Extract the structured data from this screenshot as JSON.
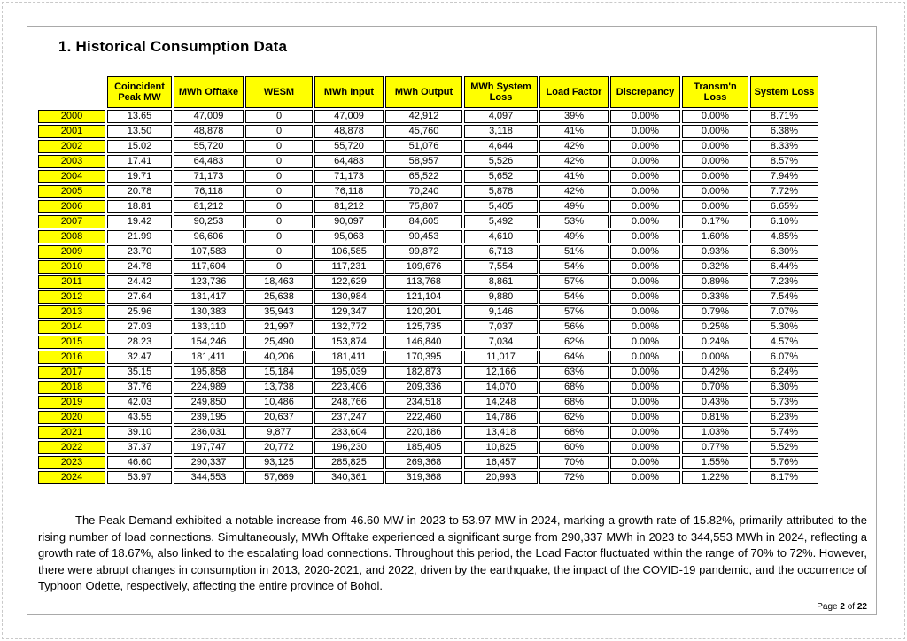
{
  "page": {
    "title": "1. Historical Consumption Data"
  },
  "colors": {
    "table_header_bg": "#FFFF00",
    "year_column_bg": "#FFFF00",
    "cell_border": "#000000"
  },
  "table": {
    "columns": [
      "Coincident Peak MW",
      "MWh Offtake",
      "WESM",
      "MWh Input",
      "MWh Output",
      "MWh System Loss",
      "Load Factor",
      "Discrepancy",
      "Transm'n Loss",
      "System Loss"
    ],
    "rows": [
      [
        "2000",
        "13.65",
        "47,009",
        "0",
        "47,009",
        "42,912",
        "4,097",
        "39%",
        "0.00%",
        "0.00%",
        "8.71%"
      ],
      [
        "2001",
        "13.50",
        "48,878",
        "0",
        "48,878",
        "45,760",
        "3,118",
        "41%",
        "0.00%",
        "0.00%",
        "6.38%"
      ],
      [
        "2002",
        "15.02",
        "55,720",
        "0",
        "55,720",
        "51,076",
        "4,644",
        "42%",
        "0.00%",
        "0.00%",
        "8.33%"
      ],
      [
        "2003",
        "17.41",
        "64,483",
        "0",
        "64,483",
        "58,957",
        "5,526",
        "42%",
        "0.00%",
        "0.00%",
        "8.57%"
      ],
      [
        "2004",
        "19.71",
        "71,173",
        "0",
        "71,173",
        "65,522",
        "5,652",
        "41%",
        "0.00%",
        "0.00%",
        "7.94%"
      ],
      [
        "2005",
        "20.78",
        "76,118",
        "0",
        "76,118",
        "70,240",
        "5,878",
        "42%",
        "0.00%",
        "0.00%",
        "7.72%"
      ],
      [
        "2006",
        "18.81",
        "81,212",
        "0",
        "81,212",
        "75,807",
        "5,405",
        "49%",
        "0.00%",
        "0.00%",
        "6.65%"
      ],
      [
        "2007",
        "19.42",
        "90,253",
        "0",
        "90,097",
        "84,605",
        "5,492",
        "53%",
        "0.00%",
        "0.17%",
        "6.10%"
      ],
      [
        "2008",
        "21.99",
        "96,606",
        "0",
        "95,063",
        "90,453",
        "4,610",
        "49%",
        "0.00%",
        "1.60%",
        "4.85%"
      ],
      [
        "2009",
        "23.70",
        "107,583",
        "0",
        "106,585",
        "99,872",
        "6,713",
        "51%",
        "0.00%",
        "0.93%",
        "6.30%"
      ],
      [
        "2010",
        "24.78",
        "117,604",
        "0",
        "117,231",
        "109,676",
        "7,554",
        "54%",
        "0.00%",
        "0.32%",
        "6.44%"
      ],
      [
        "2011",
        "24.42",
        "123,736",
        "18,463",
        "122,629",
        "113,768",
        "8,861",
        "57%",
        "0.00%",
        "0.89%",
        "7.23%"
      ],
      [
        "2012",
        "27.64",
        "131,417",
        "25,638",
        "130,984",
        "121,104",
        "9,880",
        "54%",
        "0.00%",
        "0.33%",
        "7.54%"
      ],
      [
        "2013",
        "25.96",
        "130,383",
        "35,943",
        "129,347",
        "120,201",
        "9,146",
        "57%",
        "0.00%",
        "0.79%",
        "7.07%"
      ],
      [
        "2014",
        "27.03",
        "133,110",
        "21,997",
        "132,772",
        "125,735",
        "7,037",
        "56%",
        "0.00%",
        "0.25%",
        "5.30%"
      ],
      [
        "2015",
        "28.23",
        "154,246",
        "25,490",
        "153,874",
        "146,840",
        "7,034",
        "62%",
        "0.00%",
        "0.24%",
        "4.57%"
      ],
      [
        "2016",
        "32.47",
        "181,411",
        "40,206",
        "181,411",
        "170,395",
        "11,017",
        "64%",
        "0.00%",
        "0.00%",
        "6.07%"
      ],
      [
        "2017",
        "35.15",
        "195,858",
        "15,184",
        "195,039",
        "182,873",
        "12,166",
        "63%",
        "0.00%",
        "0.42%",
        "6.24%"
      ],
      [
        "2018",
        "37.76",
        "224,989",
        "13,738",
        "223,406",
        "209,336",
        "14,070",
        "68%",
        "0.00%",
        "0.70%",
        "6.30%"
      ],
      [
        "2019",
        "42.03",
        "249,850",
        "10,486",
        "248,766",
        "234,518",
        "14,248",
        "68%",
        "0.00%",
        "0.43%",
        "5.73%"
      ],
      [
        "2020",
        "43.55",
        "239,195",
        "20,637",
        "237,247",
        "222,460",
        "14,786",
        "62%",
        "0.00%",
        "0.81%",
        "6.23%"
      ],
      [
        "2021",
        "39.10",
        "236,031",
        "9,877",
        "233,604",
        "220,186",
        "13,418",
        "68%",
        "0.00%",
        "1.03%",
        "5.74%"
      ],
      [
        "2022",
        "37.37",
        "197,747",
        "20,772",
        "196,230",
        "185,405",
        "10,825",
        "60%",
        "0.00%",
        "0.77%",
        "5.52%"
      ],
      [
        "2023",
        "46.60",
        "290,337",
        "93,125",
        "285,825",
        "269,368",
        "16,457",
        "70%",
        "0.00%",
        "1.55%",
        "5.76%"
      ],
      [
        "2024",
        "53.97",
        "344,553",
        "57,669",
        "340,361",
        "319,368",
        "20,993",
        "72%",
        "0.00%",
        "1.22%",
        "6.17%"
      ]
    ]
  },
  "paragraph": "The Peak Demand exhibited a notable increase from 46.60 MW in 2023 to 53.97 MW in 2024, marking a growth rate of 15.82%, primarily attributed to the rising number of load connections. Simultaneously, MWh Offtake experienced a significant surge from 290,337 MWh in 2023 to 344,553 MWh in 2024, reflecting a growth rate of 18.67%, also linked to the escalating load connections. Throughout this period, the Load Factor fluctuated within the range of 70% to 72%. However, there were abrupt changes in consumption in 2013, 2020-2021, and 2022, driven by the earthquake, the impact of the COVID-19 pandemic, and the occurrence of Typhoon Odette, respectively, affecting the entire province of Bohol.",
  "footer": {
    "label_page": "Page",
    "page_number": "2",
    "label_of": "of",
    "total_pages": "22"
  }
}
